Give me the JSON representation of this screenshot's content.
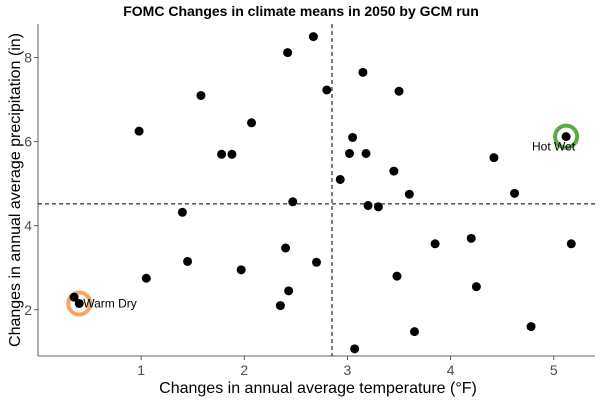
{
  "chart_data": {
    "type": "scatter",
    "title": "FOMC Changes in climate means in 2050 by GCM run",
    "xlabel": "Changes in annual average temperature (°F)",
    "ylabel": "Changes in annual average precipitation (in)",
    "xlim": [
      0.0,
      5.4
    ],
    "ylim": [
      0.9,
      8.8
    ],
    "xticks": [
      1,
      2,
      3,
      4,
      5
    ],
    "yticks": [
      2,
      4,
      6,
      8
    ],
    "grid": false,
    "point_color": "#000000",
    "reference_lines": {
      "vertical_x": 2.85,
      "horizontal_y": 4.52
    },
    "points": [
      {
        "x": 0.35,
        "y": 2.3
      },
      {
        "x": 0.4,
        "y": 2.15
      },
      {
        "x": 0.98,
        "y": 6.25
      },
      {
        "x": 1.05,
        "y": 2.75
      },
      {
        "x": 1.4,
        "y": 4.32
      },
      {
        "x": 1.45,
        "y": 3.15
      },
      {
        "x": 1.58,
        "y": 7.1
      },
      {
        "x": 1.78,
        "y": 5.7
      },
      {
        "x": 1.88,
        "y": 5.7
      },
      {
        "x": 1.97,
        "y": 2.95
      },
      {
        "x": 2.07,
        "y": 6.45
      },
      {
        "x": 2.35,
        "y": 2.1
      },
      {
        "x": 2.4,
        "y": 3.47
      },
      {
        "x": 2.42,
        "y": 8.12
      },
      {
        "x": 2.43,
        "y": 2.45
      },
      {
        "x": 2.47,
        "y": 4.57
      },
      {
        "x": 2.67,
        "y": 8.5
      },
      {
        "x": 2.7,
        "y": 3.13
      },
      {
        "x": 2.8,
        "y": 7.23
      },
      {
        "x": 2.93,
        "y": 5.1
      },
      {
        "x": 3.02,
        "y": 5.72
      },
      {
        "x": 3.05,
        "y": 6.1
      },
      {
        "x": 3.07,
        "y": 1.07
      },
      {
        "x": 3.15,
        "y": 7.65
      },
      {
        "x": 3.18,
        "y": 5.72
      },
      {
        "x": 3.2,
        "y": 4.48
      },
      {
        "x": 3.3,
        "y": 4.45
      },
      {
        "x": 3.45,
        "y": 5.3
      },
      {
        "x": 3.48,
        "y": 2.8
      },
      {
        "x": 3.5,
        "y": 7.2
      },
      {
        "x": 3.6,
        "y": 4.75
      },
      {
        "x": 3.65,
        "y": 1.48
      },
      {
        "x": 3.85,
        "y": 3.57
      },
      {
        "x": 4.2,
        "y": 3.7
      },
      {
        "x": 4.25,
        "y": 2.55
      },
      {
        "x": 4.42,
        "y": 5.62
      },
      {
        "x": 4.62,
        "y": 4.77
      },
      {
        "x": 4.78,
        "y": 1.6
      },
      {
        "x": 5.12,
        "y": 6.12
      },
      {
        "x": 5.17,
        "y": 3.57
      }
    ],
    "highlights": [
      {
        "label": "Warm Dry",
        "x": 0.4,
        "y": 2.15,
        "color": "#f4a46b"
      },
      {
        "label": "Hot Wet",
        "x": 5.12,
        "y": 6.12,
        "color": "#5aaa46"
      }
    ]
  }
}
